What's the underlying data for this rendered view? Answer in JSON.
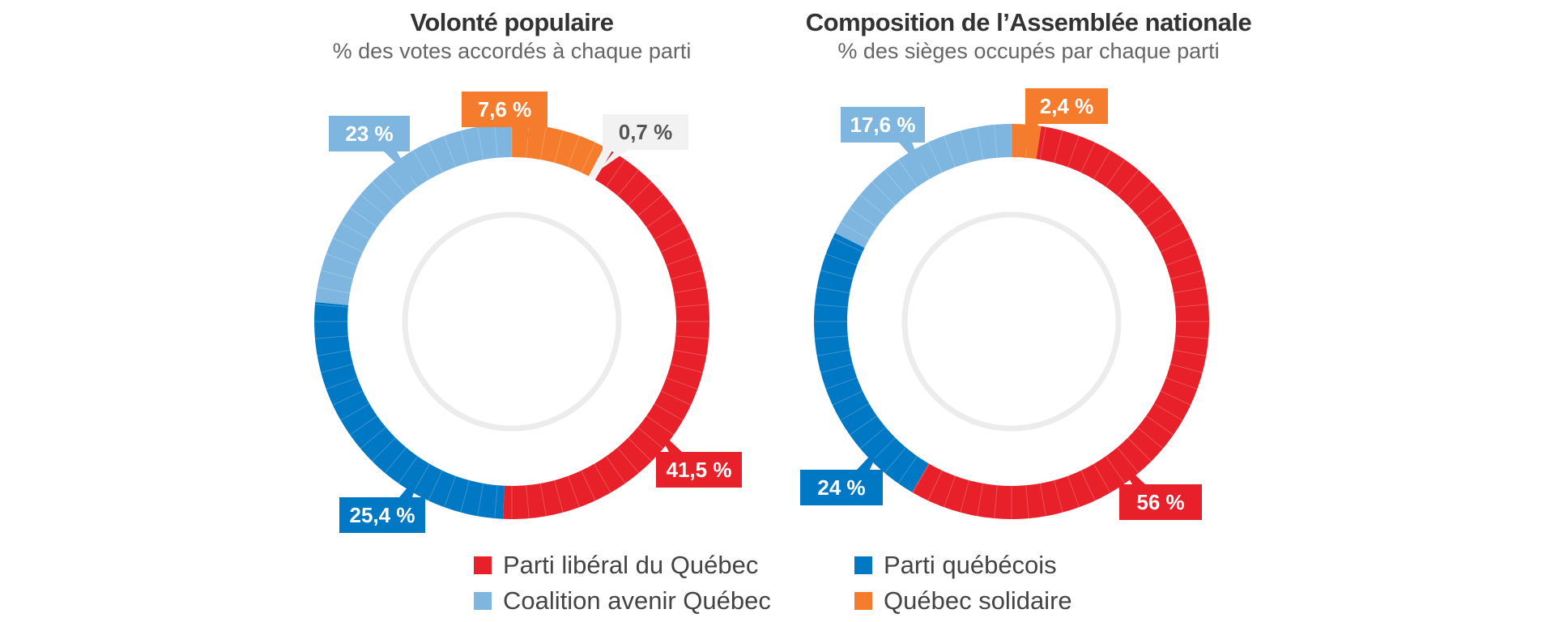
{
  "legend": [
    {
      "label": "Parti libéral du Québec",
      "color": "#e8202a"
    },
    {
      "label": "Parti québécois",
      "color": "#0078c4"
    },
    {
      "label": "Coalition avenir Québec",
      "color": "#7eb6e0"
    },
    {
      "label": "Québec solidaire",
      "color": "#f57c2c"
    }
  ],
  "chart_data": [
    {
      "type": "pie",
      "title": "Volonté populaire",
      "subtitle": "% des votes accordés à chaque parti",
      "slices": [
        {
          "party": "Québec solidaire",
          "value": 7.6,
          "label": "7,6 %",
          "color": "#f57c2c",
          "text_color": "#ffffff"
        },
        {
          "party": "",
          "value": 0.7,
          "label": "0,7 %",
          "color": "#f2f2f2",
          "text_color": "#555555"
        },
        {
          "party": "Parti libéral du Québec",
          "value": 41.5,
          "label": "41,5 %",
          "color": "#e8202a",
          "text_color": "#ffffff"
        },
        {
          "party": "Parti québécois",
          "value": 25.4,
          "label": "25,4 %",
          "color": "#0078c4",
          "text_color": "#ffffff"
        },
        {
          "party": "Coalition avenir Québec",
          "value": 23,
          "label": "23 %",
          "color": "#7eb6e0",
          "text_color": "#ffffff"
        }
      ]
    },
    {
      "type": "pie",
      "title": "Composition de l’Assemblée nationale",
      "subtitle": "% des sièges occupés par chaque parti",
      "slices": [
        {
          "party": "Québec solidaire",
          "value": 2.4,
          "label": "2,4 %",
          "color": "#f57c2c",
          "text_color": "#ffffff"
        },
        {
          "party": "Parti libéral du Québec",
          "value": 56,
          "label": "56 %",
          "color": "#e8202a",
          "text_color": "#ffffff"
        },
        {
          "party": "Parti québécois",
          "value": 24,
          "label": "24 %",
          "color": "#0078c4",
          "text_color": "#ffffff"
        },
        {
          "party": "Coalition avenir Québec",
          "value": 17.6,
          "label": "17,6 %",
          "color": "#7eb6e0",
          "text_color": "#ffffff"
        }
      ]
    }
  ]
}
